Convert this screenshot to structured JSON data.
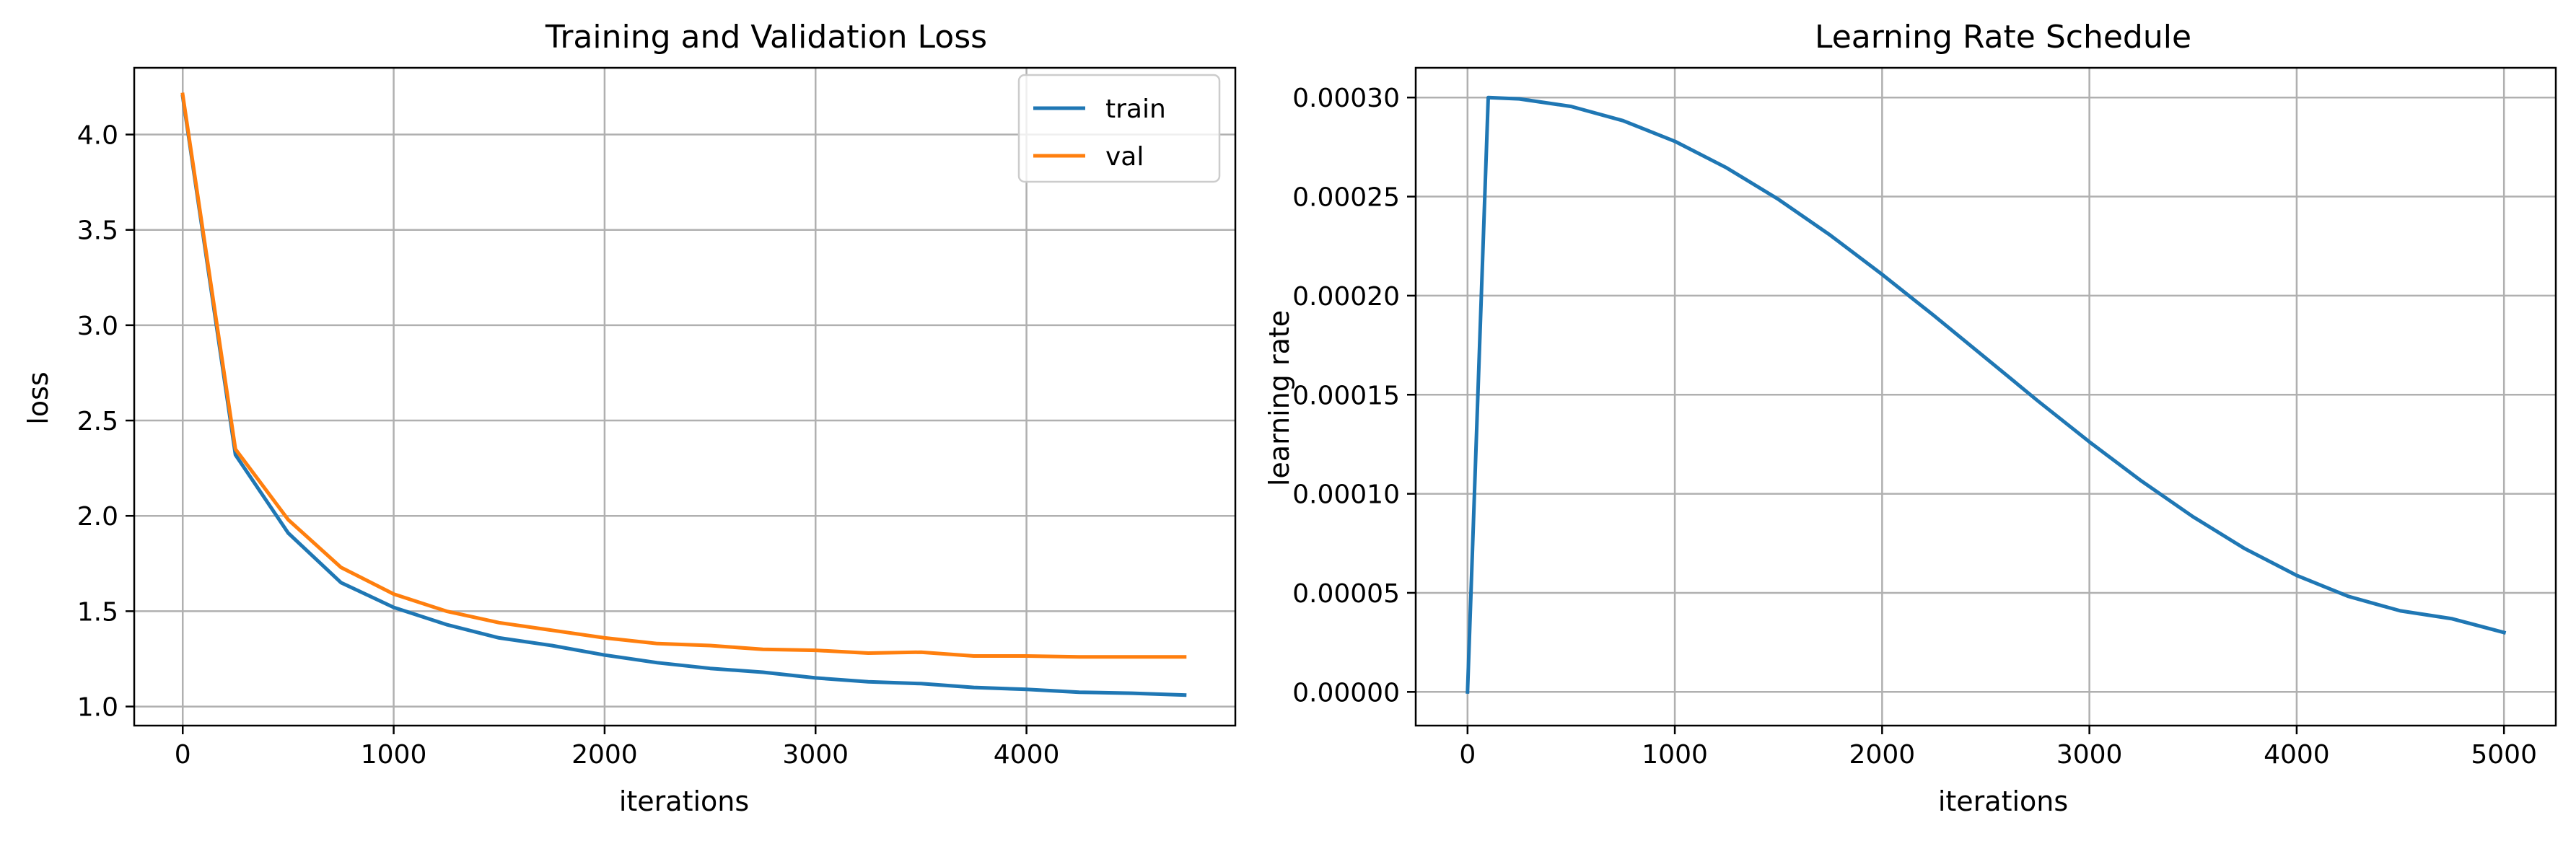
{
  "chart_data": [
    {
      "type": "line",
      "title": "Training and Validation Loss",
      "xlabel": "iterations",
      "ylabel": "loss",
      "xlim": [
        -230,
        4990
      ],
      "ylim": [
        0.9,
        4.35
      ],
      "xticks": [
        0,
        1000,
        2000,
        3000,
        4000
      ],
      "yticks": [
        1.0,
        1.5,
        2.0,
        2.5,
        3.0,
        3.5,
        4.0
      ],
      "ytick_format": 1,
      "grid": true,
      "legend": "top-right",
      "x": [
        0,
        250,
        500,
        750,
        1000,
        1250,
        1500,
        1750,
        2000,
        2250,
        2500,
        2750,
        3000,
        3250,
        3500,
        3750,
        4000,
        4250,
        4500,
        4750
      ],
      "series": [
        {
          "name": "train",
          "color": "#1f77b4",
          "values": [
            4.2,
            2.32,
            1.91,
            1.65,
            1.52,
            1.43,
            1.36,
            1.32,
            1.27,
            1.23,
            1.2,
            1.18,
            1.15,
            1.13,
            1.12,
            1.1,
            1.09,
            1.075,
            1.07,
            1.06
          ]
        },
        {
          "name": "val",
          "color": "#ff7f0e",
          "values": [
            4.21,
            2.35,
            1.98,
            1.73,
            1.59,
            1.5,
            1.44,
            1.4,
            1.36,
            1.33,
            1.32,
            1.3,
            1.295,
            1.28,
            1.285,
            1.265,
            1.265,
            1.26,
            1.26,
            1.26
          ]
        }
      ]
    },
    {
      "type": "line",
      "title": "Learning Rate Schedule",
      "xlabel": "iterations",
      "ylabel": "learning rate",
      "xlim": [
        -250,
        5250
      ],
      "ylim": [
        -1.7e-05,
        0.000315
      ],
      "xticks": [
        0,
        1000,
        2000,
        3000,
        4000,
        5000
      ],
      "yticks": [
        0.0,
        5e-05,
        0.0001,
        0.00015,
        0.0002,
        0.00025,
        0.0003
      ],
      "ytick_format": 5,
      "grid": true,
      "x": [
        0,
        100,
        250,
        500,
        750,
        1000,
        1250,
        1500,
        1750,
        2000,
        2250,
        2500,
        2750,
        3000,
        3250,
        3500,
        3750,
        4000,
        4250,
        4500,
        4750,
        5000
      ],
      "series": [
        {
          "color": "#1f77b4",
          "values": [
            0.0,
            0.0003,
            0.0002993,
            0.0002955,
            0.0002883,
            0.0002779,
            0.0002645,
            0.0002486,
            0.0002305,
            0.0002107,
            0.0001899,
            0.0001685,
            0.000147,
            0.0001262,
            0.0001065,
            8.84e-05,
            7.23e-05,
            5.88e-05,
            4.82e-05,
            4.09e-05,
            3.69e-05,
            3e-05
          ]
        }
      ]
    }
  ]
}
